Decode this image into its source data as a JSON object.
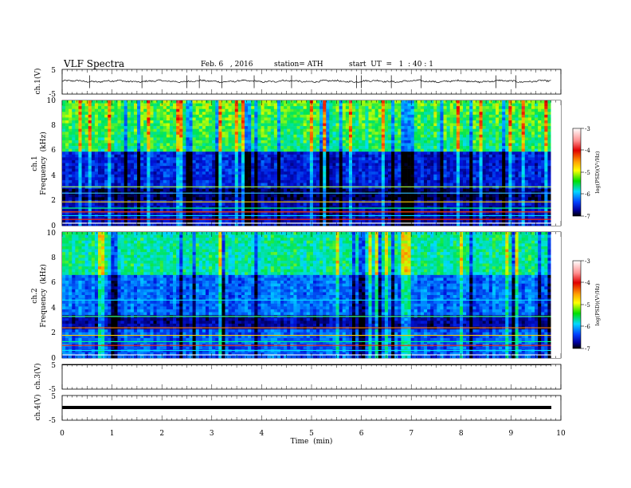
{
  "header": {
    "title": "VLF  Spectra",
    "date": "Feb. 6   , 2016",
    "station": "station= ATH",
    "start": "start  UT  =   1  : 40 : 1"
  },
  "colors": {
    "frame": "#000000",
    "scale_top": "#ffffff",
    "scale_red": "#e00000",
    "scale_yellow": "#ffff00",
    "scale_green": "#00e000",
    "scale_cyan": "#00d8ff",
    "scale_blue": "#0000cc",
    "scale_bottom": "#000000"
  },
  "chart_data": [
    {
      "type": "line",
      "name": "ch1-waveform",
      "ylabel": "ch.1(V)",
      "ylim": [
        -5,
        5
      ],
      "yticks": [
        "5",
        "-5"
      ],
      "xlim": [
        0,
        10
      ],
      "description_baseline_v": 0.2,
      "spike_times_min": [
        0.55,
        1.6,
        2.5,
        2.75,
        3.2,
        3.85,
        4.6,
        5.9,
        6.0,
        6.6,
        7.2,
        8.7,
        9.1
      ]
    },
    {
      "type": "heatmap",
      "name": "ch1-spectrogram",
      "ylabel": "Frequency  (kHz)",
      "channel_label": "ch.1",
      "ylim": [
        0,
        10
      ],
      "yticks": [
        "0",
        "2",
        "4",
        "6",
        "8",
        "10"
      ],
      "xlim": [
        0,
        9.8
      ],
      "colorbar": {
        "label": "log(PSD)(V²/Hz)",
        "range": [
          -7,
          -3
        ],
        "ticks": [
          "-3",
          "-4",
          "-5",
          "-6",
          "-7"
        ]
      }
    },
    {
      "type": "heatmap",
      "name": "ch2-spectrogram",
      "ylabel": "Frequency  (kHz)",
      "channel_label": "ch.2",
      "ylim": [
        0,
        10
      ],
      "yticks": [
        "0",
        "2",
        "4",
        "6",
        "8",
        "10"
      ],
      "xlim": [
        0,
        9.8
      ],
      "colorbar": {
        "label": "log(PSD)(V²/Hz)",
        "range": [
          -7,
          -3
        ],
        "ticks": [
          "-3",
          "-4",
          "-5",
          "-6",
          "-7"
        ]
      }
    },
    {
      "type": "line",
      "name": "ch3-waveform",
      "ylabel": "ch.3(V)",
      "ylim": [
        -5,
        5
      ],
      "yticks": [
        "5",
        "-5"
      ],
      "xlim": [
        0,
        10
      ],
      "description_baseline_v": 0
    },
    {
      "type": "line",
      "name": "ch4-waveform",
      "ylabel": "ch.4(V)",
      "ylim": [
        -5,
        5
      ],
      "yticks": [
        "5",
        "-5"
      ],
      "xlim": [
        0,
        10
      ],
      "description_baseline_v": 0
    }
  ],
  "xaxis": {
    "label": "Time  (min)",
    "ticks": [
      "0",
      "1",
      "2",
      "3",
      "4",
      "5",
      "6",
      "7",
      "8",
      "9",
      "10"
    ],
    "range": [
      0,
      10
    ]
  }
}
